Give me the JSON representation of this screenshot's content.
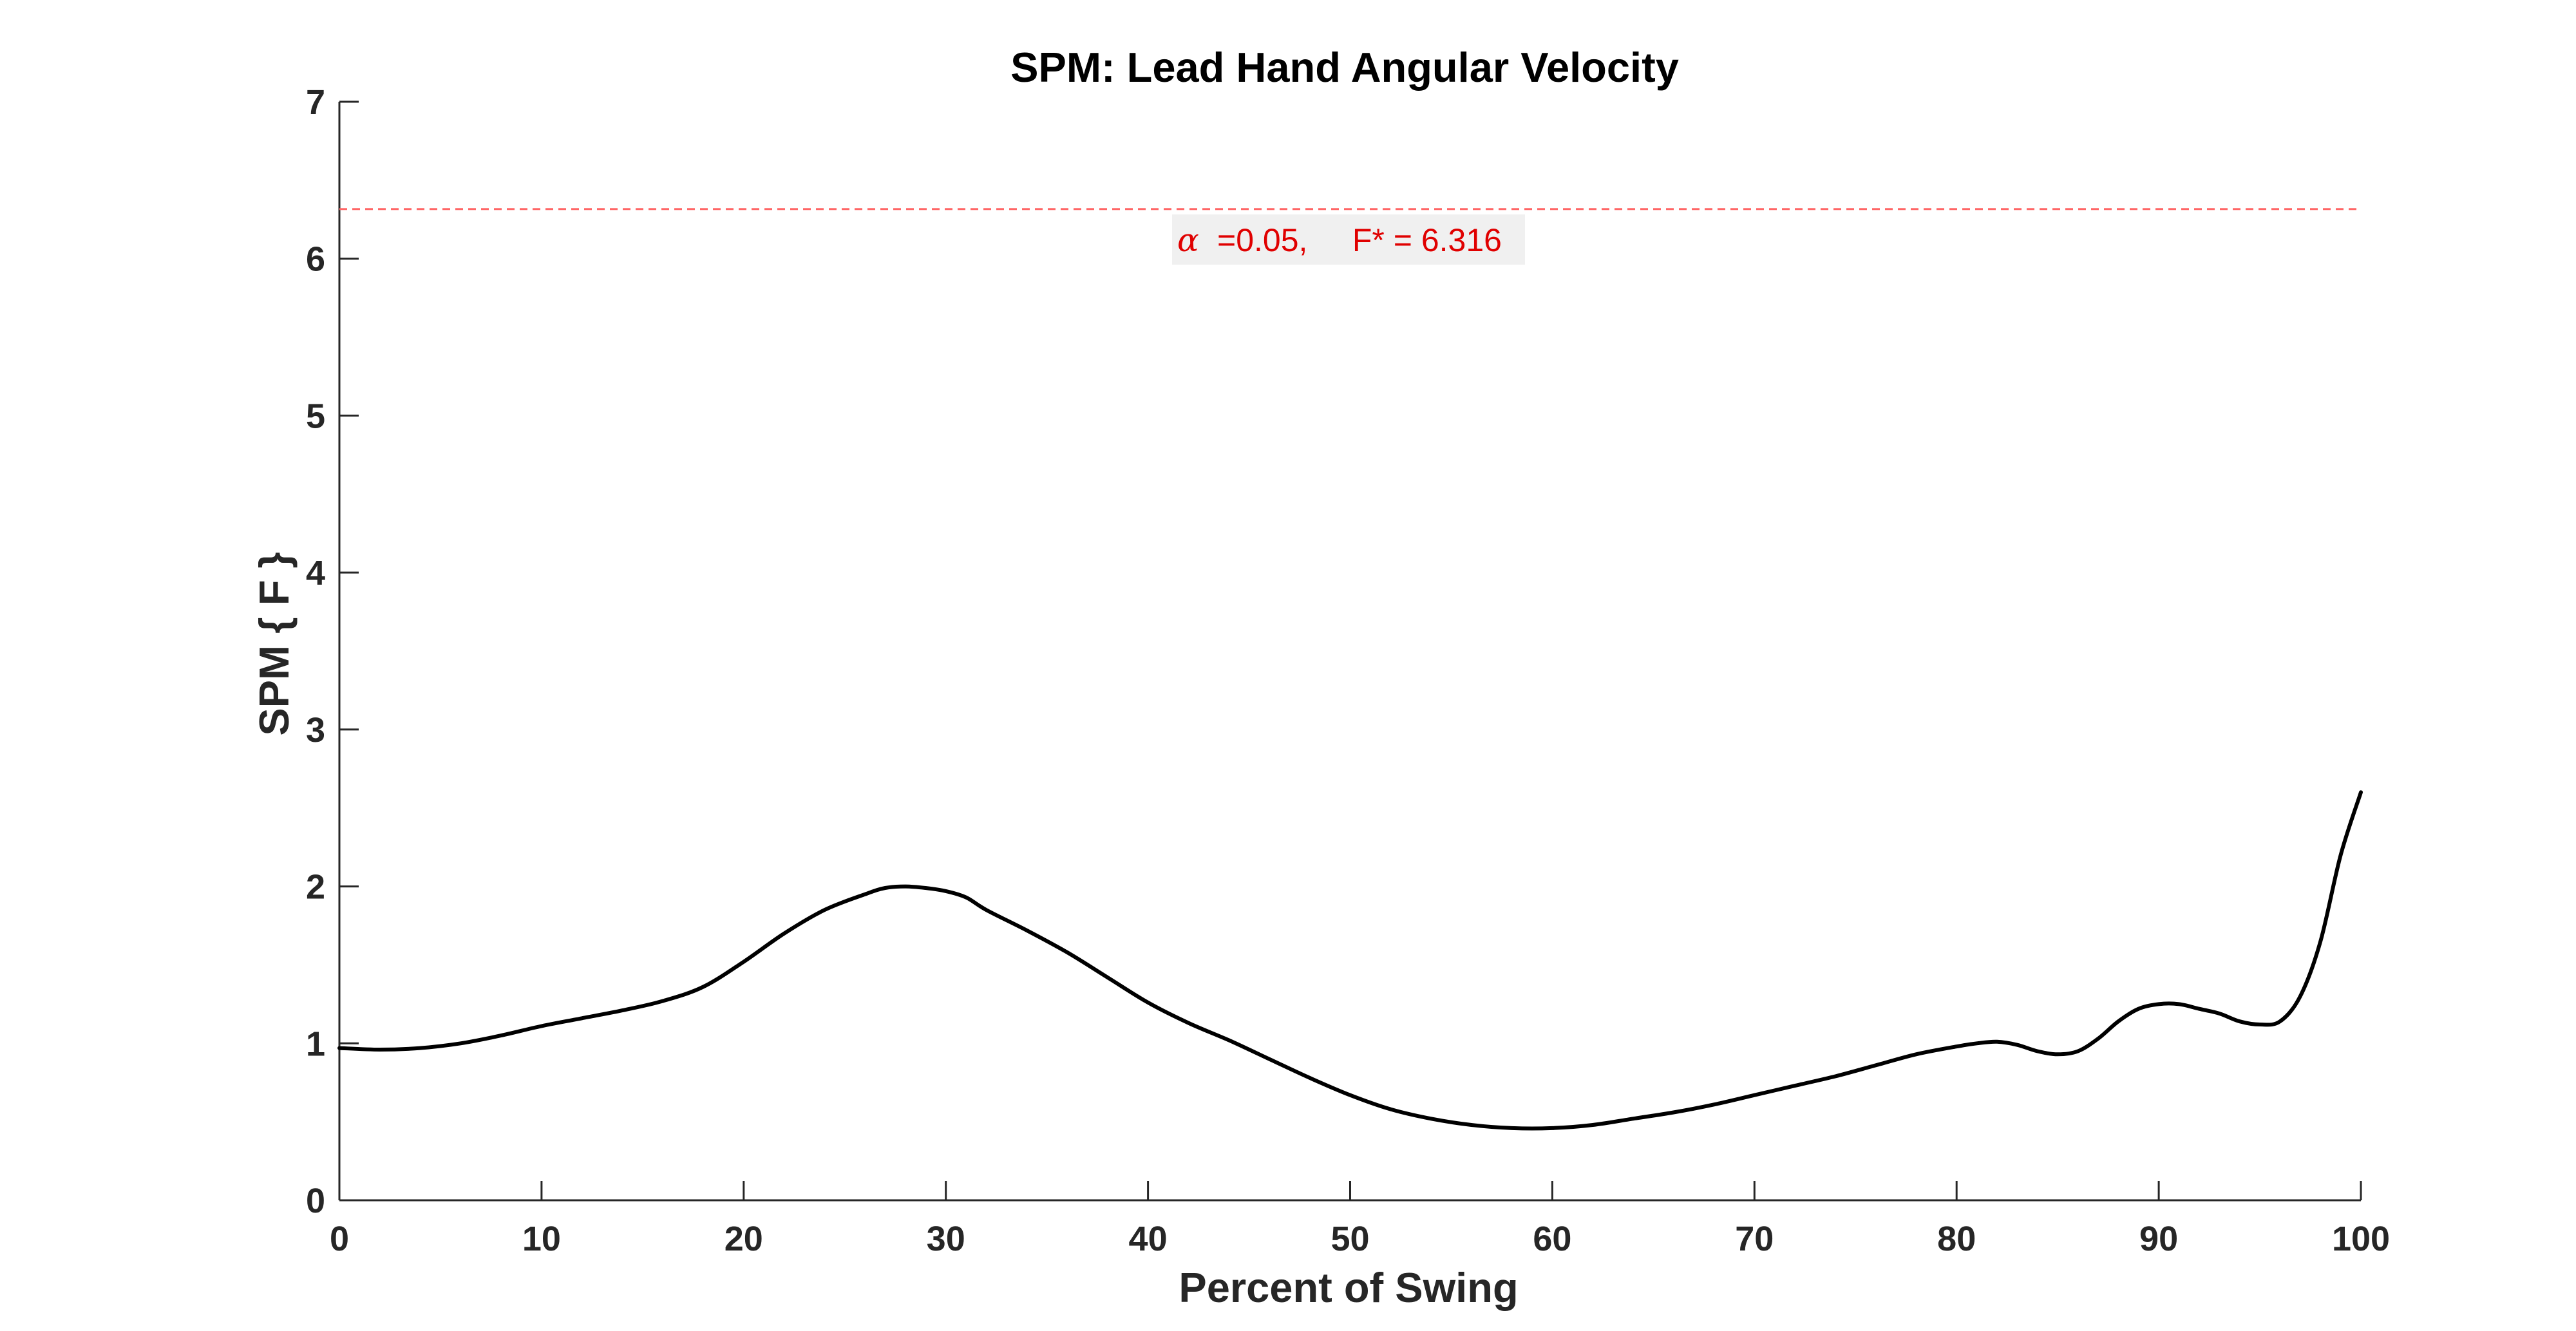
{
  "chart_data": {
    "type": "line",
    "title": "SPM: Lead Hand Angular Velocity",
    "xlabel": "Percent of Swing",
    "ylabel": "SPM { F }",
    "xlim": [
      0,
      100
    ],
    "ylim": [
      0,
      7
    ],
    "xticks": [
      "0",
      "10",
      "20",
      "30",
      "40",
      "50",
      "60",
      "70",
      "80",
      "90",
      "100"
    ],
    "yticks": [
      "0",
      "1",
      "2",
      "3",
      "4",
      "5",
      "6",
      "7"
    ],
    "grid": false,
    "series": [
      {
        "color": "#000000",
        "x": [
          0,
          2,
          4,
          6,
          8,
          10,
          12,
          14,
          16,
          18,
          20,
          22,
          24,
          26,
          27,
          28,
          29,
          30,
          31,
          32,
          34,
          36,
          38,
          40,
          42,
          44,
          46,
          48,
          50,
          52,
          54,
          56,
          58,
          60,
          62,
          64,
          66,
          68,
          70,
          72,
          74,
          76,
          78,
          80,
          81,
          82,
          83,
          84,
          85,
          86,
          87,
          88,
          89,
          90,
          91,
          92,
          93,
          94,
          95,
          96,
          97,
          98,
          99,
          100
        ],
        "y": [
          0.97,
          0.96,
          0.97,
          1.0,
          1.05,
          1.11,
          1.16,
          1.21,
          1.27,
          1.36,
          1.52,
          1.7,
          1.85,
          1.95,
          1.99,
          2.0,
          1.99,
          1.97,
          1.93,
          1.85,
          1.72,
          1.58,
          1.42,
          1.26,
          1.13,
          1.02,
          0.9,
          0.78,
          0.67,
          0.58,
          0.52,
          0.48,
          0.46,
          0.46,
          0.48,
          0.52,
          0.56,
          0.61,
          0.67,
          0.73,
          0.79,
          0.86,
          0.93,
          0.98,
          1.0,
          1.01,
          0.99,
          0.95,
          0.93,
          0.95,
          1.03,
          1.14,
          1.22,
          1.25,
          1.25,
          1.22,
          1.19,
          1.14,
          1.12,
          1.14,
          1.3,
          1.65,
          2.2,
          2.6
        ]
      }
    ],
    "threshold": {
      "value": 6.316,
      "color": "#ff6666",
      "alpha_symbol": "α",
      "label": "=0.05,     F* = 6.316"
    }
  }
}
